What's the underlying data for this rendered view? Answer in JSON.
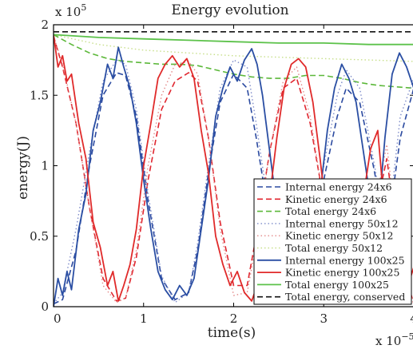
{
  "chart_data": {
    "type": "line",
    "title": "Energy evolution",
    "xlabel": "time(s)",
    "ylabel": "energy(J)",
    "x_multiplier_label": "x 10",
    "x_multiplier_exp": "−5",
    "y_multiplier_label": "x 10",
    "y_multiplier_exp": "5",
    "xlim": [
      0,
      4
    ],
    "ylim": [
      0,
      2
    ],
    "x_ticks": [
      0,
      1,
      2,
      3,
      4
    ],
    "x_tick_labels": [
      "0",
      "1",
      "2",
      "3",
      "4"
    ],
    "y_ticks": [
      0,
      0.5,
      1,
      1.5,
      2
    ],
    "y_tick_labels": [
      "0",
      "0.5",
      "1",
      "1.5",
      "2"
    ],
    "grid": false,
    "legend_position": "lower-right",
    "series": [
      {
        "name": "Internal energy 24x6",
        "color": "#2b4aa0",
        "dash": "dashed",
        "width": 1.6,
        "x": [
          0,
          0.1,
          0.25,
          0.4,
          0.55,
          0.7,
          0.8,
          0.92,
          1.05,
          1.2,
          1.35,
          1.5,
          1.6,
          1.72,
          1.85,
          2.0,
          2.15,
          2.25,
          2.4,
          2.55,
          2.7,
          2.85,
          3.0,
          3.15,
          3.25,
          3.4,
          3.55,
          3.7,
          3.85,
          4.0
        ],
        "y": [
          0.02,
          0.05,
          0.4,
          1.0,
          1.5,
          1.66,
          1.64,
          1.35,
          0.75,
          0.2,
          0.05,
          0.1,
          0.4,
          0.95,
          1.45,
          1.65,
          1.55,
          1.2,
          0.6,
          0.12,
          0.05,
          0.35,
          0.9,
          1.35,
          1.55,
          1.45,
          1.0,
          0.5,
          1.2,
          1.55
        ]
      },
      {
        "name": "Kinetic energy 24x6",
        "color": "#e0262f",
        "dash": "dashed",
        "width": 1.6,
        "x": [
          0,
          0.1,
          0.25,
          0.4,
          0.55,
          0.7,
          0.8,
          0.92,
          1.05,
          1.2,
          1.35,
          1.5,
          1.6,
          1.72,
          1.85,
          2.0,
          2.15,
          2.25,
          2.4,
          2.55,
          2.7,
          2.85,
          3.0,
          3.15,
          3.25,
          3.4,
          3.55,
          3.7,
          3.85,
          4.0
        ],
        "y": [
          1.92,
          1.7,
          1.3,
          0.7,
          0.2,
          0.04,
          0.06,
          0.35,
          0.9,
          1.4,
          1.6,
          1.66,
          1.6,
          1.2,
          0.6,
          0.15,
          0.15,
          0.5,
          1.1,
          1.55,
          1.62,
          1.3,
          0.75,
          0.3,
          0.2,
          0.25,
          0.6,
          1.05,
          0.35,
          0.02
        ]
      },
      {
        "name": "Total energy 24x6",
        "color": "#5cb83a",
        "dash": "dashed",
        "width": 1.6,
        "x": [
          0,
          0.2,
          0.4,
          0.6,
          0.8,
          1.0,
          1.2,
          1.4,
          1.6,
          1.8,
          2.0,
          2.2,
          2.4,
          2.6,
          2.8,
          3.0,
          3.2,
          3.4,
          3.6,
          3.8,
          4.0
        ],
        "y": [
          1.93,
          1.86,
          1.8,
          1.76,
          1.74,
          1.73,
          1.72,
          1.72,
          1.71,
          1.68,
          1.65,
          1.63,
          1.62,
          1.62,
          1.64,
          1.64,
          1.62,
          1.59,
          1.57,
          1.56,
          1.55
        ]
      },
      {
        "name": "Internal energy 50x12",
        "color": "#7d8bc9",
        "dash": "dotted",
        "width": 1.4,
        "x": [
          0,
          0.1,
          0.25,
          0.4,
          0.55,
          0.7,
          0.8,
          0.92,
          1.05,
          1.2,
          1.35,
          1.5,
          1.6,
          1.72,
          1.85,
          2.0,
          2.15,
          2.25,
          2.4,
          2.55,
          2.7,
          2.85,
          3.0,
          3.15,
          3.25,
          3.4,
          3.55,
          3.7,
          3.85,
          4.0
        ],
        "y": [
          0.02,
          0.1,
          0.55,
          1.1,
          1.6,
          1.75,
          1.72,
          1.4,
          0.8,
          0.22,
          0.03,
          0.1,
          0.45,
          1.0,
          1.55,
          1.75,
          1.7,
          1.3,
          0.65,
          0.12,
          0.05,
          0.4,
          1.0,
          1.5,
          1.68,
          1.55,
          1.05,
          0.5,
          1.35,
          1.62
        ]
      },
      {
        "name": "Kinetic energy 50x12",
        "color": "#e38a8a",
        "dash": "dotted",
        "width": 1.4,
        "x": [
          0,
          0.1,
          0.25,
          0.4,
          0.55,
          0.7,
          0.8,
          0.92,
          1.05,
          1.2,
          1.35,
          1.5,
          1.6,
          1.72,
          1.85,
          2.0,
          2.15,
          2.25,
          2.4,
          2.55,
          2.7,
          2.85,
          3.0,
          3.15,
          3.25,
          3.4,
          3.55,
          3.7,
          3.85,
          4.0
        ],
        "y": [
          1.92,
          1.72,
          1.3,
          0.7,
          0.15,
          0.03,
          0.06,
          0.4,
          1.0,
          1.5,
          1.72,
          1.74,
          1.65,
          1.2,
          0.55,
          0.08,
          0.1,
          0.45,
          1.1,
          1.6,
          1.7,
          1.35,
          0.75,
          0.25,
          0.12,
          0.2,
          0.65,
          1.15,
          0.3,
          0.02
        ]
      },
      {
        "name": "Total energy 50x12",
        "color": "#c7df8a",
        "dash": "dotted",
        "width": 1.4,
        "x": [
          0,
          0.5,
          1.0,
          1.5,
          2.0,
          2.5,
          3.0,
          3.5,
          4.0
        ],
        "y": [
          1.93,
          1.86,
          1.82,
          1.8,
          1.78,
          1.77,
          1.76,
          1.75,
          1.74
        ]
      },
      {
        "name": "Internal energy 100x25",
        "color": "#2a4ea3",
        "dash": "solid",
        "width": 1.8,
        "x": [
          0,
          0.05,
          0.1,
          0.15,
          0.2,
          0.28,
          0.36,
          0.44,
          0.52,
          0.6,
          0.66,
          0.72,
          0.78,
          0.85,
          0.92,
          1.0,
          1.08,
          1.16,
          1.24,
          1.32,
          1.4,
          1.48,
          1.56,
          1.64,
          1.72,
          1.8,
          1.88,
          1.96,
          2.04,
          2.12,
          2.2,
          2.26,
          2.32,
          2.4,
          2.48,
          2.56,
          2.64,
          2.72,
          2.8,
          2.88,
          2.96,
          3.04,
          3.12,
          3.2,
          3.28,
          3.36,
          3.44,
          3.52,
          3.6,
          3.68,
          3.76,
          3.84,
          3.92,
          4.0
        ],
        "y": [
          0,
          0.2,
          0.08,
          0.25,
          0.12,
          0.55,
          0.8,
          1.25,
          1.45,
          1.72,
          1.62,
          1.84,
          1.7,
          1.55,
          1.3,
          0.9,
          0.55,
          0.25,
          0.12,
          0.05,
          0.15,
          0.08,
          0.2,
          0.55,
          0.9,
          1.35,
          1.55,
          1.7,
          1.6,
          1.75,
          1.83,
          1.72,
          1.5,
          1.1,
          0.7,
          0.3,
          0.12,
          0.05,
          0.15,
          0.4,
          0.8,
          1.25,
          1.55,
          1.72,
          1.62,
          1.45,
          1.1,
          0.75,
          0.6,
          1.2,
          1.65,
          1.8,
          1.7,
          1.55
        ]
      },
      {
        "name": "Kinetic energy 100x25",
        "color": "#e02a2a",
        "dash": "solid",
        "width": 1.8,
        "x": [
          0,
          0.05,
          0.1,
          0.15,
          0.2,
          0.28,
          0.36,
          0.44,
          0.52,
          0.6,
          0.66,
          0.72,
          0.78,
          0.85,
          0.92,
          1.0,
          1.08,
          1.16,
          1.24,
          1.32,
          1.4,
          1.48,
          1.56,
          1.64,
          1.72,
          1.8,
          1.88,
          1.96,
          2.04,
          2.12,
          2.2,
          2.26,
          2.32,
          2.4,
          2.48,
          2.56,
          2.64,
          2.72,
          2.8,
          2.88,
          2.96,
          3.04,
          3.12,
          3.2,
          3.28,
          3.36,
          3.44,
          3.52,
          3.6,
          3.68,
          3.76,
          3.84,
          3.92,
          4.0
        ],
        "y": [
          1.93,
          1.7,
          1.78,
          1.6,
          1.65,
          1.3,
          1.05,
          0.6,
          0.42,
          0.15,
          0.25,
          0.04,
          0.15,
          0.3,
          0.55,
          1.0,
          1.3,
          1.62,
          1.72,
          1.78,
          1.7,
          1.76,
          1.62,
          1.25,
          0.95,
          0.5,
          0.3,
          0.15,
          0.25,
          0.1,
          0.04,
          0.15,
          0.38,
          0.78,
          1.2,
          1.55,
          1.72,
          1.76,
          1.7,
          1.45,
          1.05,
          0.6,
          0.32,
          0.15,
          0.22,
          0.42,
          0.78,
          1.12,
          1.25,
          0.65,
          0.2,
          0.04,
          0.12,
          0.28
        ]
      },
      {
        "name": "Total energy 100x25",
        "color": "#5cc24a",
        "dash": "solid",
        "width": 1.8,
        "x": [
          0,
          0.5,
          1.0,
          1.5,
          2.0,
          2.5,
          3.0,
          3.5,
          4.0
        ],
        "y": [
          1.93,
          1.91,
          1.9,
          1.89,
          1.88,
          1.87,
          1.87,
          1.86,
          1.86
        ]
      },
      {
        "name": "Total energy, conserved",
        "color": "#111111",
        "dash": "dashed",
        "width": 1.6,
        "x": [
          0,
          4
        ],
        "y": [
          1.95,
          1.95
        ]
      }
    ]
  }
}
